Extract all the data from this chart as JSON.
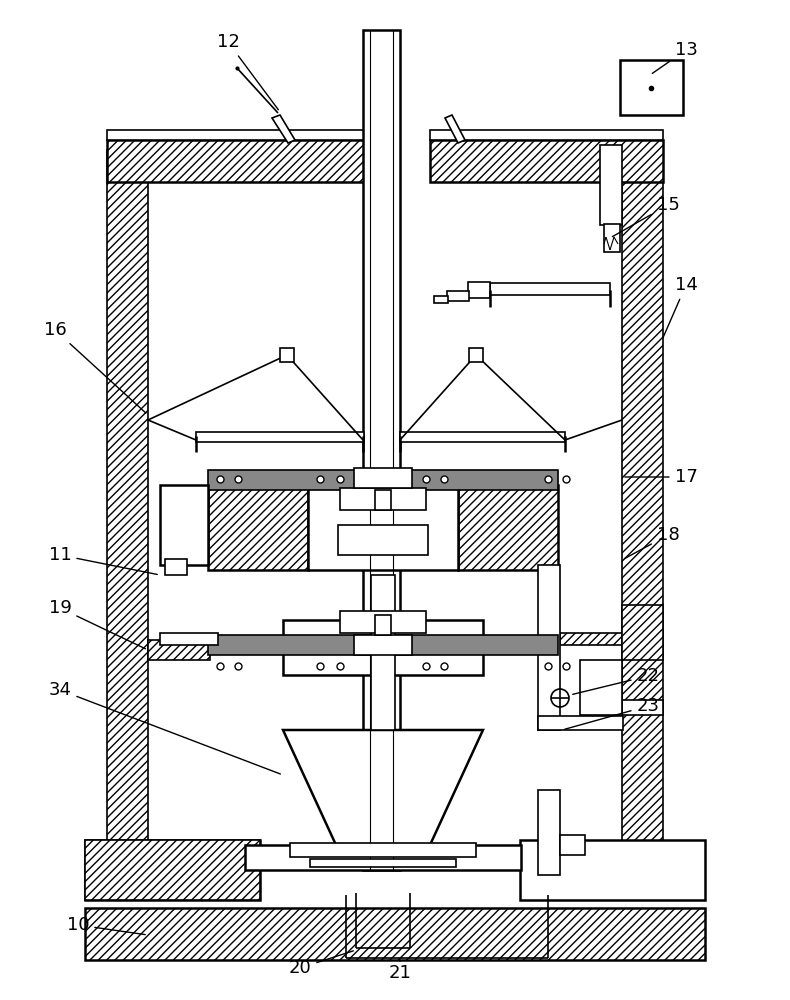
{
  "bg_color": "#ffffff",
  "line_color": "#000000",
  "lw": 1.2,
  "lw2": 1.8,
  "figsize": [
    7.9,
    10.0
  ],
  "dpi": 100
}
